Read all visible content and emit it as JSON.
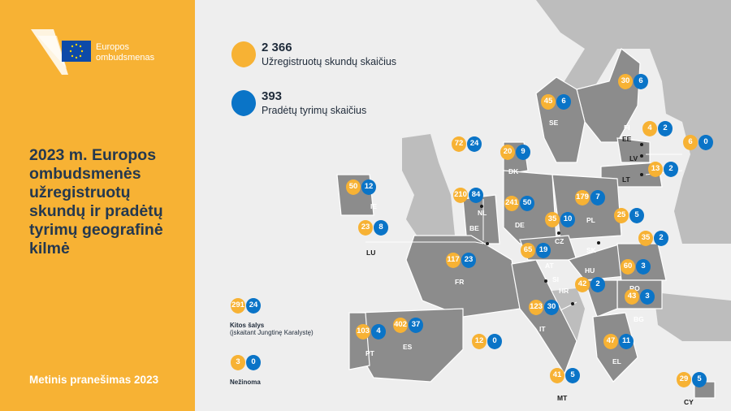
{
  "brand": {
    "line1": "Europos",
    "line2": "ombudsmenas"
  },
  "title_lines": [
    "2023 m. Europos",
    "ombudsmenės",
    "užregistruotų",
    "skundų ir pradėtų",
    "tyrimų geografinė",
    "kilmė"
  ],
  "footer": "Metinis pranešimas 2023",
  "legend": {
    "complaints_total": "2 366",
    "complaints_label": "Užregistruotų skundų skaičius",
    "inquiries_total": "393",
    "inquiries_label": "Pradėtų tyrimų skaičius"
  },
  "other": {
    "complaints": "291",
    "inquiries": "24",
    "label": "Kitos šalys",
    "sublabel": "(įskaitant Jungtinę Karalystę)"
  },
  "unknown": {
    "complaints": "3",
    "inquiries": "0",
    "label": "Nežinoma"
  },
  "colors": {
    "complaints": "#f7b234",
    "inquiries": "#0a74c7",
    "land": "#8c8c8c",
    "non_eu": "#bcbcbc",
    "sidebar": "#f7b234"
  },
  "countries": [
    {
      "code": "FI",
      "complaints": "30",
      "inquiries": "6"
    },
    {
      "code": "SE",
      "complaints": "45",
      "inquiries": "6"
    },
    {
      "code": "EE",
      "complaints": "4",
      "inquiries": "2"
    },
    {
      "code": "LV",
      "complaints": "6",
      "inquiries": "0"
    },
    {
      "code": "LT",
      "complaints": "13",
      "inquiries": "2"
    },
    {
      "code": "DK",
      "complaints": "20",
      "inquiries": "9"
    },
    {
      "code": "IE",
      "complaints": "50",
      "inquiries": "12"
    },
    {
      "code": "NL",
      "complaints": "72",
      "inquiries": "24"
    },
    {
      "code": "BE",
      "complaints": "210",
      "inquiries": "84"
    },
    {
      "code": "LU",
      "complaints": "23",
      "inquiries": "8"
    },
    {
      "code": "DE",
      "complaints": "241",
      "inquiries": "50"
    },
    {
      "code": "PL",
      "complaints": "179",
      "inquiries": "7"
    },
    {
      "code": "CZ",
      "complaints": "35",
      "inquiries": "10"
    },
    {
      "code": "SK",
      "complaints": "25",
      "inquiries": "5"
    },
    {
      "code": "AT",
      "complaints": "65",
      "inquiries": "19"
    },
    {
      "code": "HU",
      "complaints": "35",
      "inquiries": "2"
    },
    {
      "code": "FR",
      "complaints": "117",
      "inquiries": "23"
    },
    {
      "code": "SI",
      "complaints": "12",
      "inquiries": "0"
    },
    {
      "code": "HR",
      "complaints": "42",
      "inquiries": "2"
    },
    {
      "code": "RO",
      "complaints": "60",
      "inquiries": "3"
    },
    {
      "code": "BG",
      "complaints": "43",
      "inquiries": "3"
    },
    {
      "code": "IT",
      "complaints": "123",
      "inquiries": "30"
    },
    {
      "code": "ES",
      "complaints": "402",
      "inquiries": "37"
    },
    {
      "code": "PT",
      "complaints": "103",
      "inquiries": "4"
    },
    {
      "code": "EL",
      "complaints": "47",
      "inquiries": "11"
    },
    {
      "code": "MT",
      "complaints": "41",
      "inquiries": "5"
    },
    {
      "code": "CY",
      "complaints": "29",
      "inquiries": "5"
    }
  ]
}
